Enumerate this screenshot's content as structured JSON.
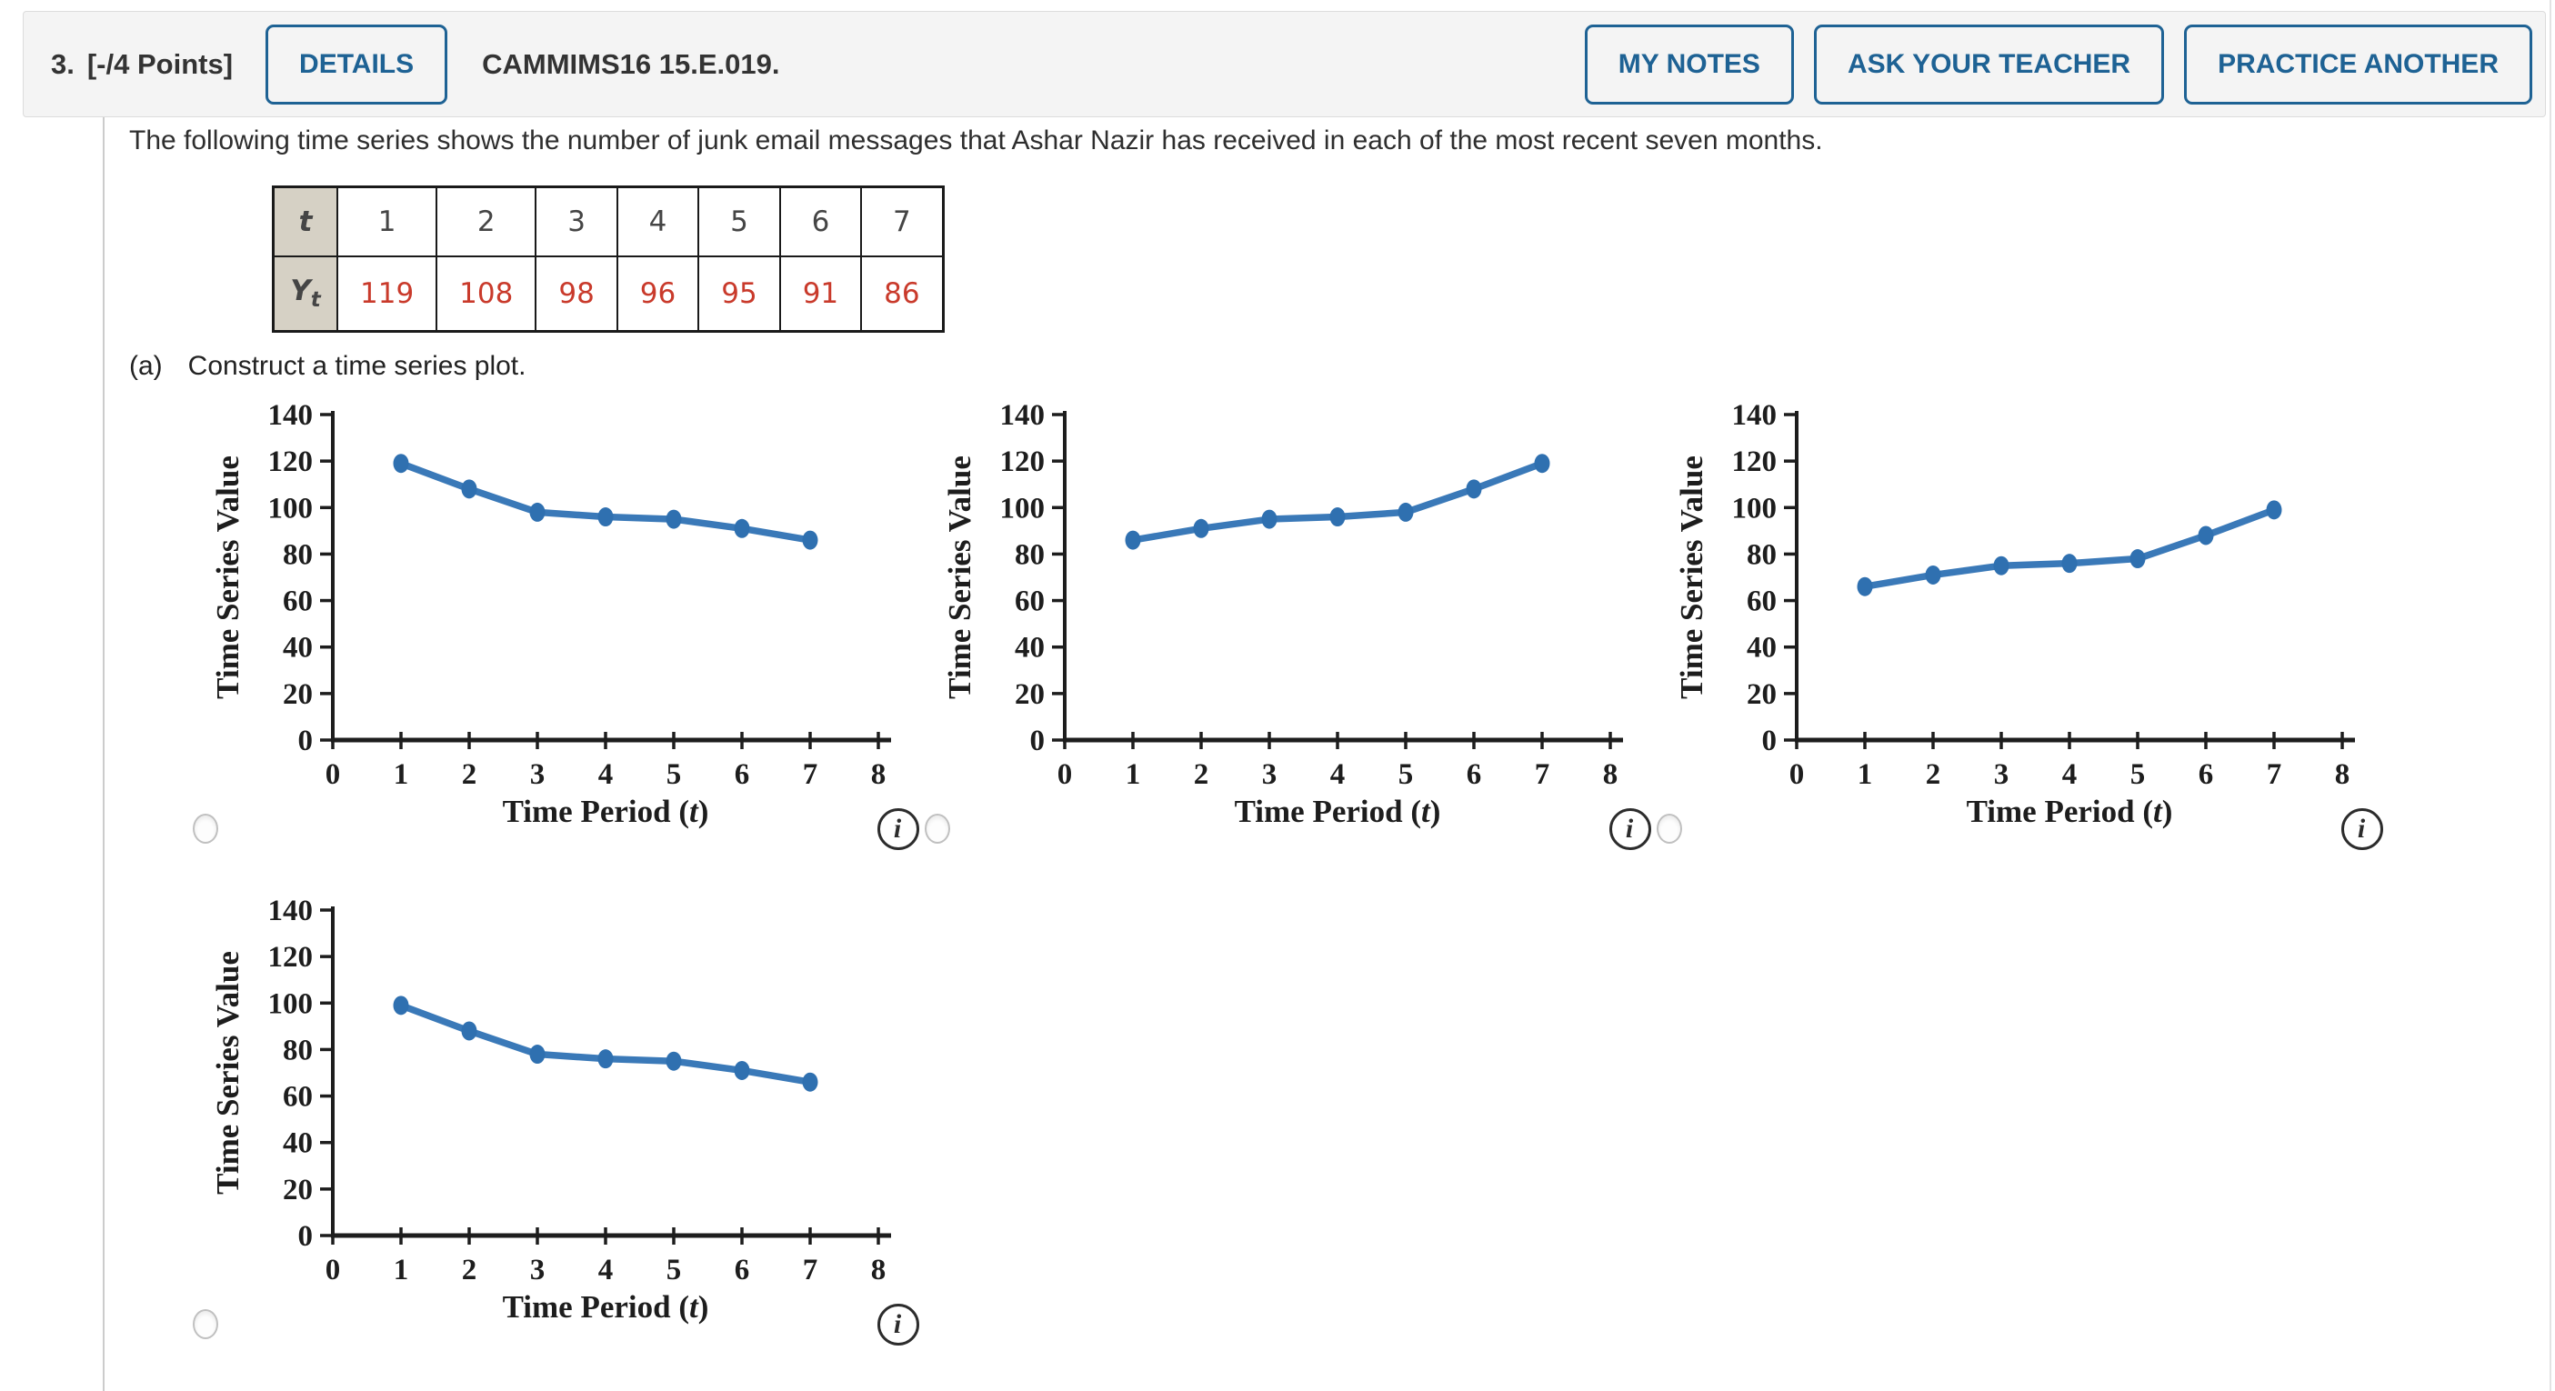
{
  "header": {
    "question_number": "3.",
    "points_label": "[-/4 Points]",
    "details_button": "DETAILS",
    "assignment_code": "CAMMIMS16 15.E.019.",
    "my_notes_button": "MY NOTES",
    "ask_teacher_button": "ASK YOUR TEACHER",
    "practice_button": "PRACTICE ANOTHER"
  },
  "question": {
    "prompt": "The following time series shows the number of junk email messages that Ashar Nazir has received in each of the most recent seven months.",
    "part_a_label": "(a)",
    "part_a_text": "Construct a time series plot."
  },
  "data_table": {
    "row1_header": "t",
    "row2_header_base": "Y",
    "row2_header_sub": "t",
    "t_values": [
      "1",
      "2",
      "3",
      "4",
      "5",
      "6",
      "7"
    ],
    "y_values": [
      "119",
      "108",
      "98",
      "96",
      "95",
      "91",
      "86"
    ],
    "header_bg": "#d6d1c5",
    "y_value_color": "#c93a2b"
  },
  "icons": {
    "info_glyph": "i"
  },
  "colors": {
    "accent_blue": "#1e6294",
    "header_bg": "#f4f4f4",
    "chart_line": "#3a79b8",
    "chart_marker": "#2f70b0",
    "axis_color": "#1d1d1d"
  },
  "chart_data": [
    {
      "type": "line",
      "option": "A",
      "x": [
        1,
        2,
        3,
        4,
        5,
        6,
        7
      ],
      "values": [
        119,
        108,
        98,
        96,
        95,
        91,
        86
      ],
      "xlabel": "Time Period (t)",
      "ylabel": "Time Series Value",
      "xlabel_parts": [
        {
          "t": "Time Period (",
          "i": false
        },
        {
          "t": "t",
          "i": true
        },
        {
          "t": ")",
          "i": false
        }
      ],
      "xlim": [
        0,
        8
      ],
      "ylim": [
        0,
        140
      ],
      "xticks": [
        0,
        1,
        2,
        3,
        4,
        5,
        6,
        7,
        8
      ],
      "yticks": [
        0,
        20,
        40,
        60,
        80,
        100,
        120,
        140
      ],
      "grid": false,
      "legend": false,
      "line_color": "#3a79b8",
      "marker_color": "#2f70b0"
    },
    {
      "type": "line",
      "option": "B",
      "x": [
        1,
        2,
        3,
        4,
        5,
        6,
        7
      ],
      "values": [
        86,
        91,
        95,
        96,
        98,
        108,
        119
      ],
      "xlabel": "Time Period (t)",
      "ylabel": "Time Series Value",
      "xlabel_parts": [
        {
          "t": "Time Period (",
          "i": false
        },
        {
          "t": "t",
          "i": true
        },
        {
          "t": ")",
          "i": false
        }
      ],
      "xlim": [
        0,
        8
      ],
      "ylim": [
        0,
        140
      ],
      "xticks": [
        0,
        1,
        2,
        3,
        4,
        5,
        6,
        7,
        8
      ],
      "yticks": [
        0,
        20,
        40,
        60,
        80,
        100,
        120,
        140
      ],
      "grid": false,
      "legend": false,
      "line_color": "#3a79b8",
      "marker_color": "#2f70b0"
    },
    {
      "type": "line",
      "option": "C",
      "x": [
        1,
        2,
        3,
        4,
        5,
        6,
        7
      ],
      "values": [
        66,
        71,
        75,
        76,
        78,
        88,
        99
      ],
      "xlabel": "Time Period (t)",
      "ylabel": "Time Series Value",
      "xlabel_parts": [
        {
          "t": "Time Period (",
          "i": false
        },
        {
          "t": "t",
          "i": true
        },
        {
          "t": ")",
          "i": false
        }
      ],
      "xlim": [
        0,
        8
      ],
      "ylim": [
        0,
        140
      ],
      "xticks": [
        0,
        1,
        2,
        3,
        4,
        5,
        6,
        7,
        8
      ],
      "yticks": [
        0,
        20,
        40,
        60,
        80,
        100,
        120,
        140
      ],
      "grid": false,
      "legend": false,
      "line_color": "#3a79b8",
      "marker_color": "#2f70b0"
    },
    {
      "type": "line",
      "option": "D",
      "x": [
        1,
        2,
        3,
        4,
        5,
        6,
        7
      ],
      "values": [
        99,
        88,
        78,
        76,
        75,
        71,
        66
      ],
      "xlabel": "Time Period (t)",
      "ylabel": "Time Series Value",
      "xlabel_parts": [
        {
          "t": "Time Period (",
          "i": false
        },
        {
          "t": "t",
          "i": true
        },
        {
          "t": ")",
          "i": false
        }
      ],
      "xlim": [
        0,
        8
      ],
      "ylim": [
        0,
        140
      ],
      "xticks": [
        0,
        1,
        2,
        3,
        4,
        5,
        6,
        7,
        8
      ],
      "yticks": [
        0,
        20,
        40,
        60,
        80,
        100,
        120,
        140
      ],
      "grid": false,
      "legend": false,
      "line_color": "#3a79b8",
      "marker_color": "#2f70b0"
    }
  ]
}
